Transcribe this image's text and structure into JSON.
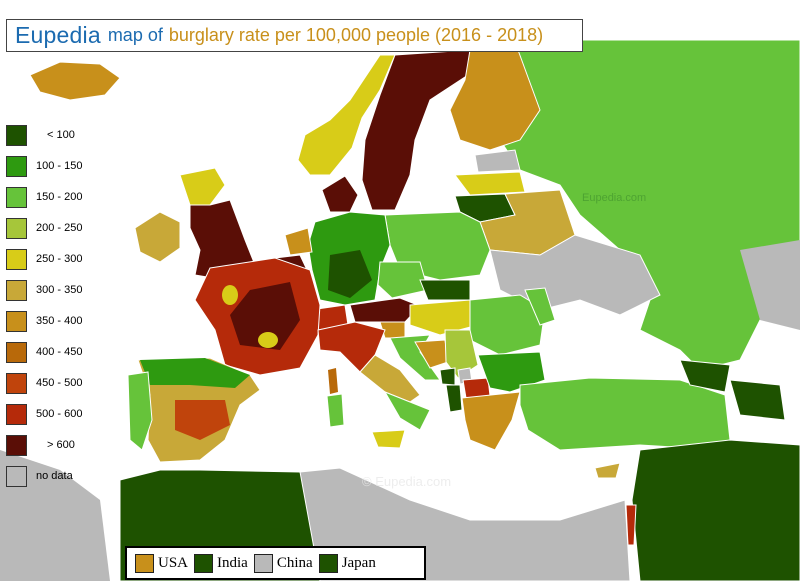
{
  "title": {
    "brand": "Eupedia",
    "prefix": "map of",
    "topic": "burglary rate per 100,000 people (2016 - 2018)"
  },
  "legend": [
    {
      "label": "< 100",
      "color": "#1e5200"
    },
    {
      "label": "100 - 150",
      "color": "#2e9a10"
    },
    {
      "label": "150 - 200",
      "color": "#66c33a"
    },
    {
      "label": "200 - 250",
      "color": "#a6c63a"
    },
    {
      "label": "250 - 300",
      "color": "#d8cc18"
    },
    {
      "label": "300 - 350",
      "color": "#c8a838"
    },
    {
      "label": "350 - 400",
      "color": "#c8901b"
    },
    {
      "label": "400 - 450",
      "color": "#b8690a"
    },
    {
      "label": "450 - 500",
      "color": "#c0440c"
    },
    {
      "label": "500 - 600",
      "color": "#b52a0a"
    },
    {
      "label": "> 600",
      "color": "#5a0e06"
    },
    {
      "label": "no data",
      "color": "#b9b9b9"
    }
  ],
  "comparison": [
    {
      "label": "USA",
      "color": "#c8901b"
    },
    {
      "label": "India",
      "color": "#1e5200"
    },
    {
      "label": "China",
      "color": "#b9b9b9"
    },
    {
      "label": "Japan",
      "color": "#1e5200"
    }
  ],
  "watermarks": {
    "top": "Eupedia.com",
    "bottom": "© Eupedia.com"
  },
  "colors": {
    "sea": "#ffffff",
    "border": "#000000"
  }
}
